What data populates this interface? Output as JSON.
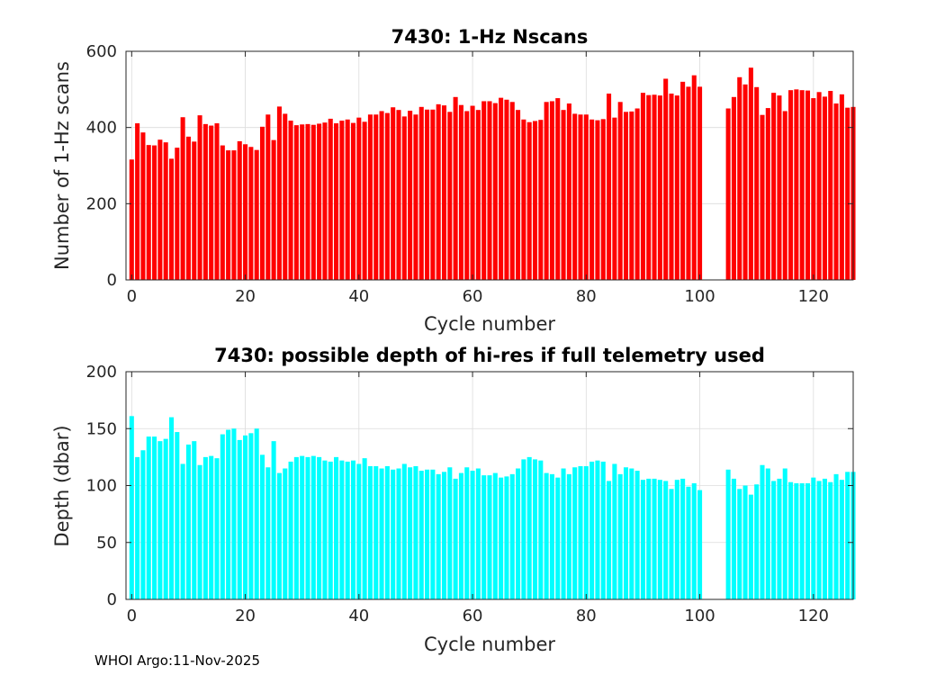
{
  "footer": "WHOI Argo:11-Nov-2025",
  "chart_data": [
    {
      "type": "bar",
      "title": "7430: 1-Hz Nscans",
      "xlabel": "Cycle number",
      "ylabel": "Number of 1-Hz scans",
      "xlim": [
        -1,
        127
      ],
      "ylim": [
        0,
        600
      ],
      "xticks": [
        0,
        20,
        40,
        60,
        80,
        100,
        120
      ],
      "yticks": [
        0,
        200,
        400,
        600
      ],
      "grid": true,
      "color": "#ff0000",
      "x_start": 0,
      "values": [
        316,
        411,
        387,
        354,
        353,
        368,
        361,
        318,
        347,
        427,
        376,
        363,
        432,
        409,
        405,
        411,
        353,
        340,
        340,
        364,
        356,
        349,
        341,
        402,
        434,
        367,
        455,
        436,
        418,
        406,
        408,
        409,
        407,
        410,
        413,
        423,
        411,
        418,
        421,
        412,
        426,
        415,
        434,
        434,
        443,
        438,
        453,
        446,
        429,
        444,
        434,
        454,
        447,
        447,
        461,
        458,
        441,
        480,
        459,
        443,
        457,
        446,
        469,
        469,
        464,
        478,
        473,
        467,
        446,
        421,
        414,
        417,
        420,
        467,
        469,
        477,
        446,
        463,
        436,
        434,
        434,
        421,
        419,
        422,
        489,
        426,
        467,
        441,
        442,
        450,
        491,
        485,
        486,
        484,
        528,
        489,
        484,
        520,
        507,
        537,
        507,
        null,
        null,
        null,
        null,
        450,
        480,
        532,
        513,
        557,
        506,
        433,
        451,
        491,
        484,
        443,
        498,
        500,
        498,
        497,
        477,
        493,
        481,
        496,
        463,
        487,
        452,
        454
      ]
    },
    {
      "type": "bar",
      "title": "7430: possible depth of hi-res if full telemetry used",
      "xlabel": "Cycle number",
      "ylabel": "Depth (dbar)",
      "xlim": [
        -1,
        127
      ],
      "ylim": [
        0,
        200
      ],
      "xticks": [
        0,
        20,
        40,
        60,
        80,
        100,
        120
      ],
      "yticks": [
        0,
        50,
        100,
        150,
        200
      ],
      "grid": true,
      "color": "#00ffff",
      "x_start": 0,
      "values": [
        161,
        125,
        131,
        143,
        143,
        139,
        141,
        160,
        147,
        119,
        136,
        139,
        118,
        125,
        126,
        124,
        145,
        149,
        150,
        140,
        144,
        146,
        150,
        127,
        116,
        139,
        111,
        115,
        121,
        125,
        126,
        125,
        126,
        125,
        122,
        121,
        125,
        122,
        121,
        122,
        119,
        124,
        117,
        117,
        115,
        117,
        114,
        115,
        119,
        116,
        117,
        113,
        114,
        114,
        110,
        112,
        116,
        106,
        111,
        116,
        113,
        115,
        109,
        109,
        111,
        107,
        108,
        110,
        115,
        123,
        125,
        123,
        122,
        111,
        110,
        107,
        115,
        110,
        116,
        117,
        117,
        121,
        122,
        121,
        104,
        119,
        110,
        116,
        115,
        113,
        105,
        106,
        106,
        105,
        104,
        97,
        105,
        106,
        99,
        102,
        96,
        null,
        null,
        null,
        null,
        114,
        106,
        97,
        100,
        92,
        101,
        118,
        115,
        104,
        106,
        115,
        103,
        102,
        102,
        102,
        107,
        104,
        106,
        103,
        110,
        105,
        112,
        112
      ]
    }
  ]
}
